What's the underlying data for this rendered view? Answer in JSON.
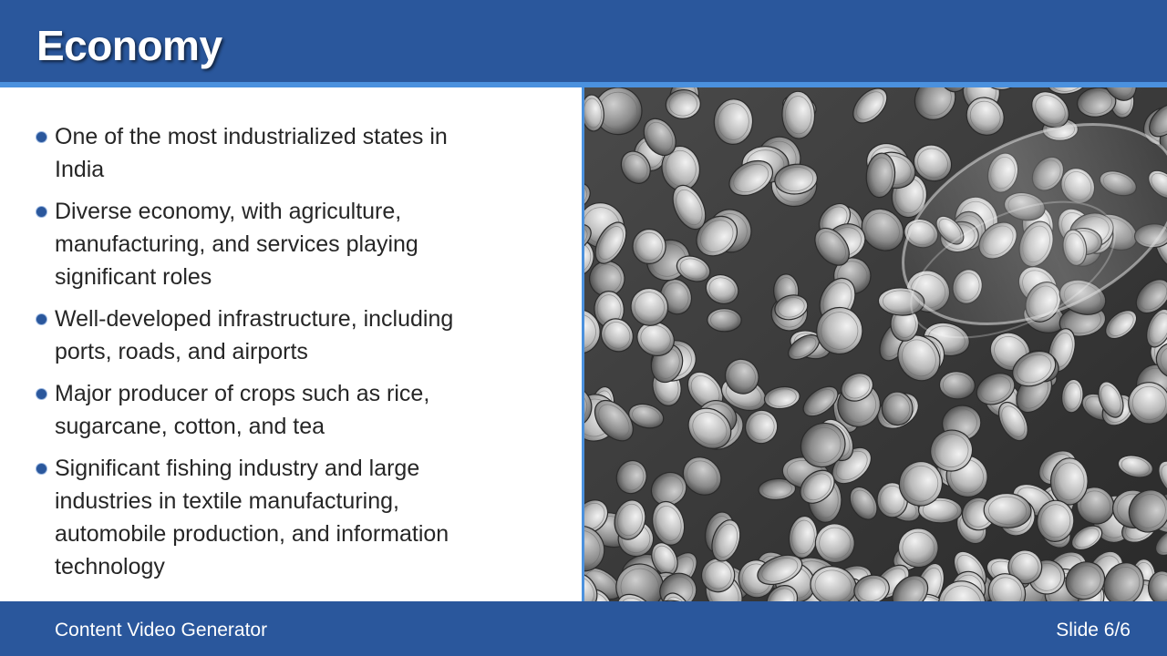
{
  "header": {
    "title": "Economy"
  },
  "bullets": [
    "One of the most industrialized states in India",
    "Diverse economy, with agriculture, manufacturing, and services playing significant roles",
    "Well-developed infrastructure, including ports, roads, and airports",
    "Major producer of crops such as rice, sugarcane, cotton, and tea",
    "Significant fishing industry and large industries in textile manufacturing, automobile production, and information technology"
  ],
  "image": {
    "icon": "coins-photo"
  },
  "footer": {
    "left_text": "Content Video Generator",
    "slide_counter": "Slide 6/6"
  },
  "colors": {
    "header_bg": "#2a579c",
    "accent": "#4b91de",
    "bullet": "#2a579c",
    "text": "#262626"
  }
}
